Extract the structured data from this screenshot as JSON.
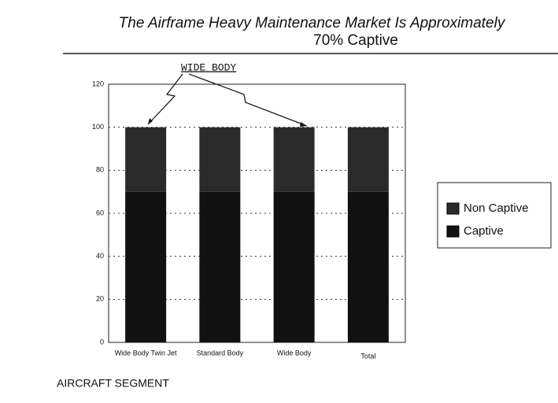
{
  "chart_data": {
    "type": "bar",
    "stacked": true,
    "title": [
      "The Airframe Heavy Maintenance Market Is Approximately",
      "70% Captive"
    ],
    "annotation": "WIDE BODY",
    "x_label": "AIRCRAFT SEGMENT",
    "categories": [
      "Wide Body Twin Jet",
      "Standard Body",
      "Wide Body",
      "Total"
    ],
    "series": [
      {
        "name": "Captive",
        "color": "#111111",
        "values": [
          70,
          70,
          70,
          70
        ]
      },
      {
        "name": "Non Captive",
        "color": "#2a2a2a",
        "values": [
          30,
          30,
          30,
          30
        ]
      }
    ],
    "legend_order": [
      1,
      0
    ],
    "ylim": [
      0,
      120
    ],
    "yticks": [
      0,
      20,
      40,
      60,
      80,
      100,
      120
    ],
    "grid": true
  }
}
